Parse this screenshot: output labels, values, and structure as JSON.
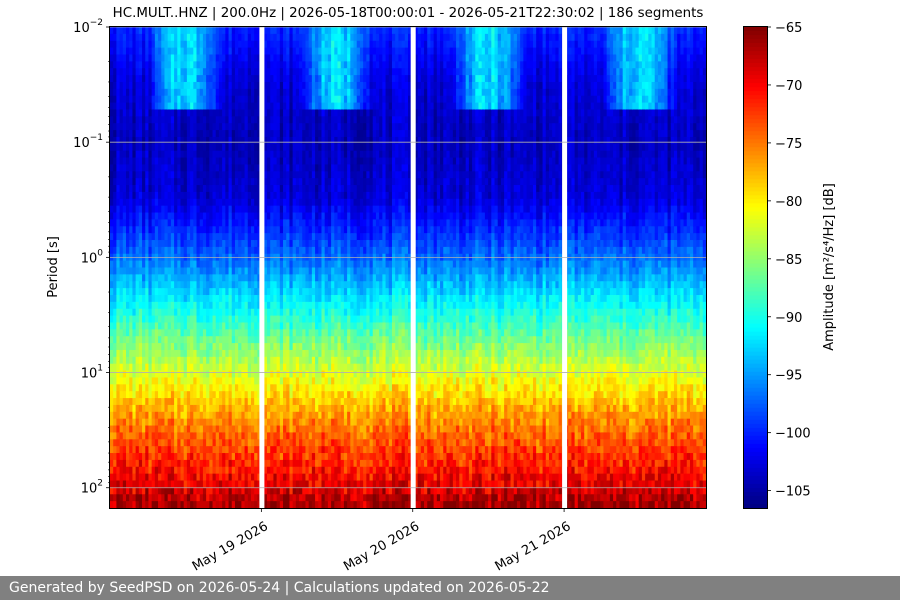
{
  "chart_data": {
    "type": "heatmap",
    "title": "HC.MULT..HNZ | 200.0Hz | 2026-05-18T00:00:01 - 2026-05-21T22:30:02 | 186 segments",
    "xlabel": "",
    "ylabel": "Period [s]",
    "y_scale": "log",
    "y_inverted": true,
    "ylim": [
      0.01,
      150
    ],
    "xlim": [
      "2026-05-18T00:00:00",
      "2026-05-21T22:30:00"
    ],
    "x_tick_labels": [
      {
        "label": "May 19 2026",
        "date": "2026-05-19T00:00:00"
      },
      {
        "label": "May 20 2026",
        "date": "2026-05-20T00:00:00"
      },
      {
        "label": "May 21 2026",
        "date": "2026-05-21T00:00:00"
      }
    ],
    "y_tick_labels": [
      {
        "base": "10",
        "exp": "−2",
        "value": 0.01
      },
      {
        "base": "10",
        "exp": "−1",
        "value": 0.1
      },
      {
        "base": "10",
        "exp": "0",
        "value": 1
      },
      {
        "base": "10",
        "exp": "1",
        "value": 10
      },
      {
        "base": "10",
        "exp": "2",
        "value": 100
      }
    ],
    "grid": true,
    "colormap": "jet",
    "colorbar": {
      "label": "Amplitude [m²/s⁴/Hz] [dB]",
      "range": [
        -106.5,
        -65
      ],
      "tick_labels": [
        {
          "label": "−65",
          "value": -65
        },
        {
          "label": "−70",
          "value": -70
        },
        {
          "label": "−75",
          "value": -75
        },
        {
          "label": "−80",
          "value": -80
        },
        {
          "label": "−85",
          "value": -85
        },
        {
          "label": "−90",
          "value": -90
        },
        {
          "label": "−95",
          "value": -95
        },
        {
          "label": "−100",
          "value": -100
        },
        {
          "label": "−105",
          "value": -105
        }
      ]
    },
    "data_gaps": [
      "2026-05-19T00:00:00",
      "2026-05-20T00:00:00",
      "2026-05-21T00:00:00"
    ],
    "segments": 186,
    "amplitude_profile_by_period": [
      {
        "period": 0.01,
        "db": -100
      },
      {
        "period": 0.015,
        "db": -101
      },
      {
        "period": 0.03,
        "db": -103
      },
      {
        "period": 0.1,
        "db": -104
      },
      {
        "period": 0.3,
        "db": -103
      },
      {
        "period": 1,
        "db": -97
      },
      {
        "period": 3,
        "db": -90
      },
      {
        "period": 10,
        "db": -82
      },
      {
        "period": 30,
        "db": -75
      },
      {
        "period": 100,
        "db": -69
      },
      {
        "period": 150,
        "db": -66
      }
    ],
    "daytime_noise_band": {
      "period_range": [
        0.01,
        0.05
      ],
      "db_peak": -91
    }
  },
  "footer": {
    "text": "Generated by SeedPSD on 2026-05-24 | Calculations updated on 2026-05-22"
  }
}
